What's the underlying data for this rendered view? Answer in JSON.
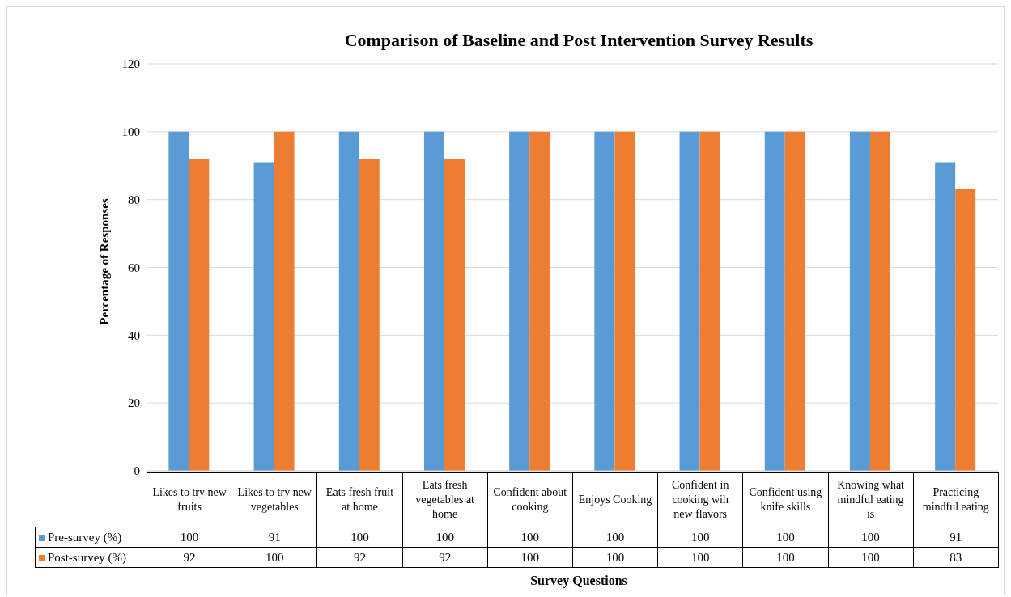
{
  "chart_data": {
    "type": "bar",
    "title": "Comparison of Baseline and Post Intervention Survey Results",
    "xlabel": "Survey Questions",
    "ylabel": "Percentage of Responses",
    "categories": [
      "Likes to try new fruits",
      "Likes to try new vegetables",
      "Eats fresh fruit at home",
      "Eats fresh vegetables at home",
      "Confident about cooking",
      "Enjoys Cooking",
      "Confident in cooking wih new flavors",
      "Confident using knife skills",
      "Knowing what mindful eating is",
      "Practicing mindful eating"
    ],
    "series": [
      {
        "name": "Pre-survey (%)",
        "color": "#5b9bd5",
        "values": [
          100,
          91,
          100,
          100,
          100,
          100,
          100,
          100,
          100,
          91
        ]
      },
      {
        "name": "Post-survey (%)",
        "color": "#ed7d31",
        "values": [
          92,
          100,
          92,
          92,
          100,
          100,
          100,
          100,
          100,
          83
        ]
      }
    ],
    "ylim": [
      0,
      120
    ],
    "yticks": [
      0,
      20,
      40,
      60,
      80,
      100,
      120
    ],
    "grid": "y",
    "legend": "bottom",
    "data_labels": true
  }
}
